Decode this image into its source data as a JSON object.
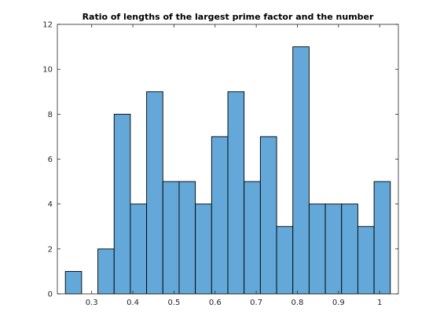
{
  "chart_data": {
    "type": "bar",
    "title": "Ratio of lengths of the largest prime factor and the number",
    "xlabel": "",
    "ylabel": "",
    "bin_width": 0.0395,
    "bin_starts": [
      0.236,
      0.2755,
      0.315,
      0.3545,
      0.394,
      0.4335,
      0.473,
      0.5125,
      0.552,
      0.5915,
      0.631,
      0.6705,
      0.71,
      0.7495,
      0.789,
      0.8285,
      0.868,
      0.9075,
      0.947,
      0.9865
    ],
    "values": [
      1,
      0,
      2,
      8,
      4,
      9,
      5,
      5,
      4,
      7,
      9,
      5,
      7,
      3,
      11,
      4,
      4,
      4,
      3,
      5
    ],
    "xlim": [
      0.2165,
      1.0455
    ],
    "ylim": [
      0,
      12
    ],
    "xticks": [
      "0.3",
      "0.4",
      "0.5",
      "0.6",
      "0.7",
      "0.8",
      "0.9",
      "1"
    ],
    "xtick_values": [
      0.3,
      0.4,
      0.5,
      0.6,
      0.7,
      0.8,
      0.9,
      1.0
    ],
    "yticks": [
      "0",
      "2",
      "4",
      "6",
      "8",
      "10",
      "12"
    ],
    "ytick_values": [
      0,
      2,
      4,
      6,
      8,
      10,
      12
    ],
    "grid": false,
    "bar_color": "#63a8d8",
    "edge_color": "#000000"
  }
}
